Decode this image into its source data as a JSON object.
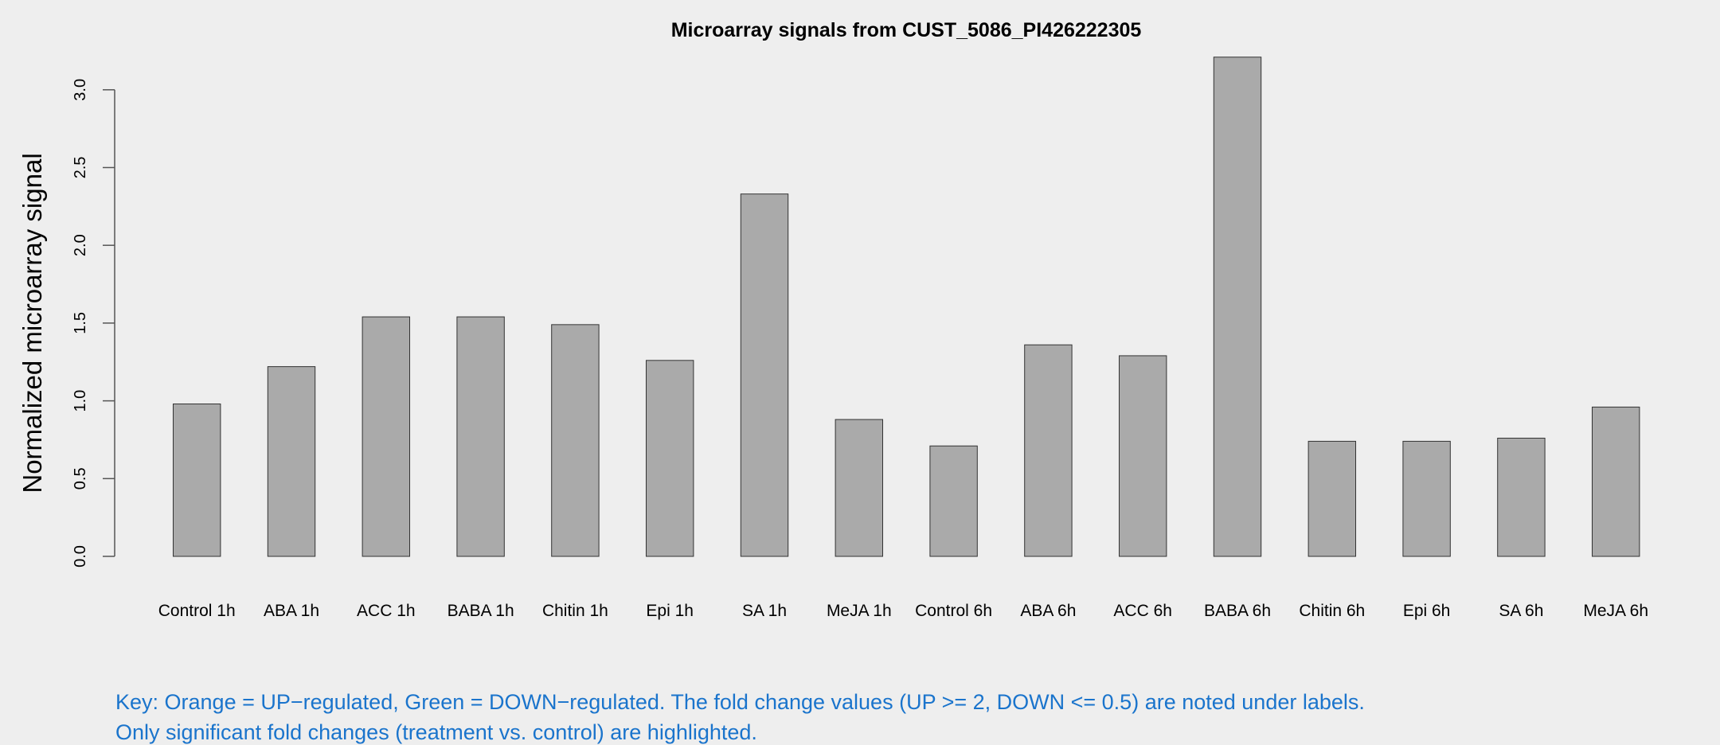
{
  "chart_data": {
    "type": "bar",
    "title": "Microarray signals from CUST_5086_PI426222305",
    "xlabel": "",
    "ylabel": "Normalized microarray signal",
    "ylim": [
      0,
      3.25
    ],
    "yticks": [
      "0.0",
      "0.5",
      "1.0",
      "1.5",
      "2.0",
      "2.5",
      "3.0"
    ],
    "grid": false,
    "categories": [
      "Control 1h",
      "ABA 1h",
      "ACC 1h",
      "BABA 1h",
      "Chitin 1h",
      "Epi 1h",
      "SA 1h",
      "MeJA 1h",
      "Control 6h",
      "ABA 6h",
      "ACC 6h",
      "BABA 6h",
      "Chitin 6h",
      "Epi 6h",
      "SA 6h",
      "MeJA 6h"
    ],
    "values": [
      0.98,
      1.22,
      1.54,
      1.54,
      1.49,
      1.26,
      2.33,
      0.88,
      0.71,
      1.36,
      1.29,
      3.21,
      0.74,
      0.74,
      0.76,
      0.96
    ],
    "bar_color": "#aaaaaa",
    "key_lines": [
      "Key: Orange = UP−regulated, Green = DOWN−regulated. The fold change values (UP >= 2, DOWN <= 0.5) are noted under labels.",
      "Only significant fold changes (treatment vs. control) are highlighted."
    ],
    "key_color": "#1a74cc"
  }
}
